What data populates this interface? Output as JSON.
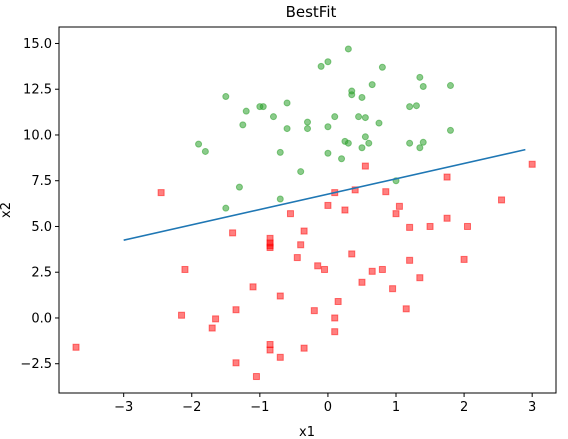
{
  "chart_data": {
    "type": "scatter",
    "title": "BestFit",
    "xlabel": "x1",
    "ylabel": "x2",
    "xlim": [
      -3.95,
      3.35
    ],
    "ylim": [
      -4.1,
      15.9
    ],
    "xticks": [
      -3,
      -2,
      -1,
      0,
      1,
      2,
      3
    ],
    "yticks": [
      -2.5,
      0.0,
      2.5,
      5.0,
      7.5,
      10.0,
      12.5,
      15.0
    ],
    "xtick_labels": [
      "−3",
      "−2",
      "−1",
      "0",
      "1",
      "2",
      "3"
    ],
    "ytick_labels": [
      "−2.5",
      "0.0",
      "2.5",
      "5.0",
      "7.5",
      "10.0",
      "12.5",
      "15.0"
    ],
    "colors": {
      "green": "#2ca02c",
      "red": "#ff0000",
      "line": "#1f77b4"
    },
    "series": [
      {
        "marker": "circle",
        "color": "#2ca02c",
        "points": [
          [
            0.3,
            14.7
          ],
          [
            -0.1,
            13.75
          ],
          [
            0.0,
            14.0
          ],
          [
            0.8,
            13.7
          ],
          [
            1.35,
            13.15
          ],
          [
            0.35,
            12.4
          ],
          [
            0.35,
            12.2
          ],
          [
            0.65,
            12.75
          ],
          [
            1.4,
            12.65
          ],
          [
            1.8,
            12.7
          ],
          [
            -1.5,
            12.1
          ],
          [
            0.5,
            12.05
          ],
          [
            -1.2,
            11.3
          ],
          [
            -1.0,
            11.55
          ],
          [
            -0.95,
            11.55
          ],
          [
            -0.6,
            11.75
          ],
          [
            1.2,
            11.55
          ],
          [
            1.3,
            11.6
          ],
          [
            -0.8,
            11.0
          ],
          [
            0.1,
            11.0
          ],
          [
            0.45,
            11.0
          ],
          [
            0.55,
            10.95
          ],
          [
            -0.3,
            10.7
          ],
          [
            0.75,
            10.65
          ],
          [
            -1.25,
            10.55
          ],
          [
            -0.3,
            10.35
          ],
          [
            -0.6,
            10.35
          ],
          [
            0.0,
            10.45
          ],
          [
            1.8,
            10.25
          ],
          [
            0.55,
            9.9
          ],
          [
            -1.9,
            9.5
          ],
          [
            0.25,
            9.65
          ],
          [
            0.3,
            9.55
          ],
          [
            1.2,
            9.55
          ],
          [
            1.4,
            9.6
          ],
          [
            0.6,
            9.55
          ],
          [
            1.35,
            9.3
          ],
          [
            0.5,
            9.3
          ],
          [
            -1.8,
            9.1
          ],
          [
            -0.7,
            9.05
          ],
          [
            0.0,
            9.0
          ],
          [
            0.2,
            8.7
          ],
          [
            -0.4,
            8.0
          ],
          [
            1.0,
            7.5
          ],
          [
            -1.3,
            7.15
          ],
          [
            -0.7,
            6.5
          ],
          [
            -1.5,
            6.0
          ]
        ]
      },
      {
        "marker": "square",
        "color": "#ff0000",
        "points": [
          [
            0.55,
            8.3
          ],
          [
            3.0,
            8.4
          ],
          [
            1.75,
            7.7
          ],
          [
            -2.45,
            6.85
          ],
          [
            0.4,
            7.0
          ],
          [
            0.1,
            6.85
          ],
          [
            0.85,
            6.9
          ],
          [
            2.55,
            6.45
          ],
          [
            0.0,
            6.15
          ],
          [
            1.05,
            6.1
          ],
          [
            0.25,
            5.9
          ],
          [
            -0.55,
            5.7
          ],
          [
            1.0,
            5.7
          ],
          [
            1.75,
            5.45
          ],
          [
            1.5,
            5.0
          ],
          [
            2.05,
            5.0
          ],
          [
            1.2,
            4.95
          ],
          [
            -1.4,
            4.65
          ],
          [
            -0.35,
            4.75
          ],
          [
            -0.85,
            4.35
          ],
          [
            -0.85,
            4.1
          ],
          [
            -0.85,
            3.95
          ],
          [
            -0.85,
            3.85
          ],
          [
            -0.4,
            4.0
          ],
          [
            -0.45,
            3.3
          ],
          [
            0.35,
            3.5
          ],
          [
            2.0,
            3.2
          ],
          [
            1.2,
            3.15
          ],
          [
            -0.15,
            2.85
          ],
          [
            -0.05,
            2.65
          ],
          [
            -2.1,
            2.65
          ],
          [
            0.65,
            2.55
          ],
          [
            0.8,
            2.65
          ],
          [
            1.35,
            2.2
          ],
          [
            0.5,
            1.95
          ],
          [
            -1.1,
            1.7
          ],
          [
            0.95,
            1.6
          ],
          [
            -0.7,
            1.2
          ],
          [
            0.15,
            0.9
          ],
          [
            1.15,
            0.5
          ],
          [
            -1.35,
            0.45
          ],
          [
            -0.2,
            0.4
          ],
          [
            -2.15,
            0.15
          ],
          [
            0.1,
            0.0
          ],
          [
            -1.65,
            -0.05
          ],
          [
            -1.7,
            -0.55
          ],
          [
            0.1,
            -0.75
          ],
          [
            -0.85,
            -1.45
          ],
          [
            -3.7,
            -1.6
          ],
          [
            -0.35,
            -1.65
          ],
          [
            -0.85,
            -1.75
          ],
          [
            -0.7,
            -2.15
          ],
          [
            -1.35,
            -2.45
          ],
          [
            -1.05,
            -3.2
          ]
        ]
      }
    ],
    "line": {
      "color": "#1f77b4",
      "x": [
        -3.0,
        2.9
      ],
      "y": [
        4.25,
        9.2
      ]
    }
  }
}
